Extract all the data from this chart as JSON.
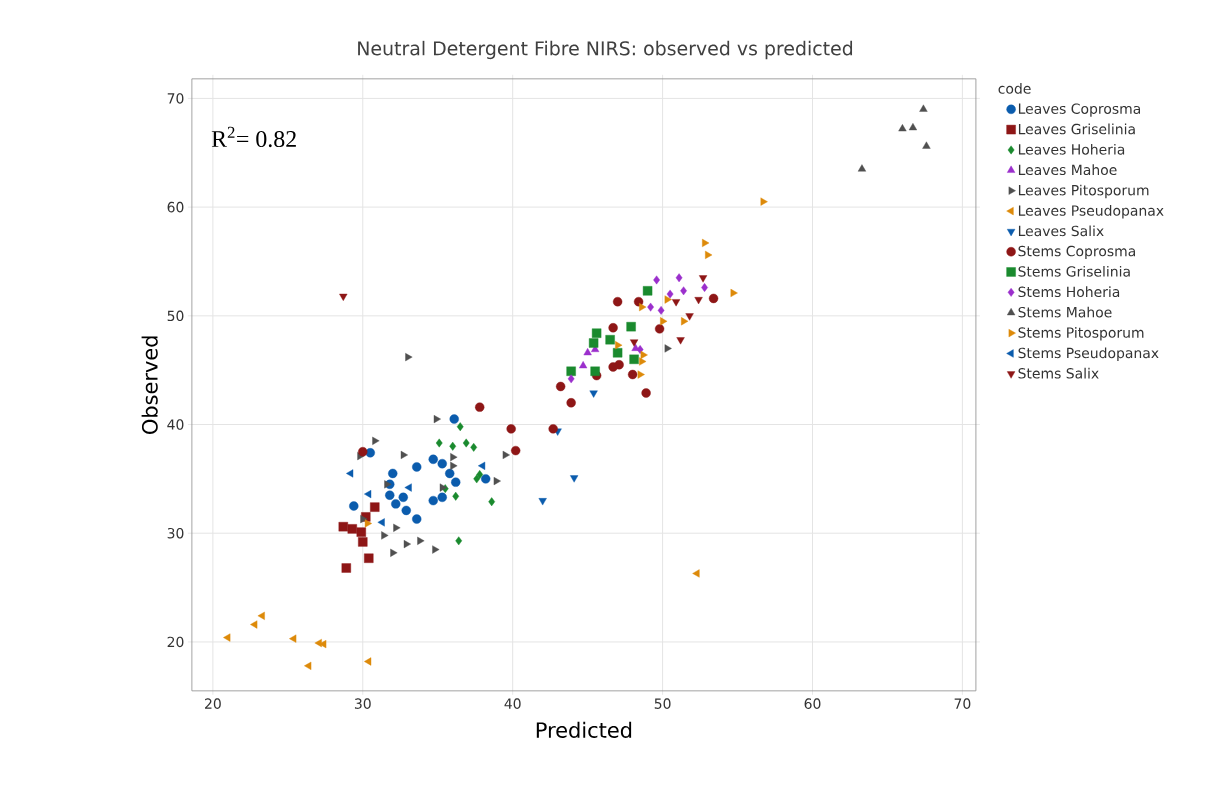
{
  "chart_data": {
    "type": "scatter",
    "title": "Neutral Detergent Fibre NIRS: observed vs predicted",
    "xlabel": "Predicted",
    "ylabel": "Observed",
    "legend_title": "code",
    "legend": "right",
    "grid": true,
    "annotations": [
      "R$^{2}$= 0.82"
    ],
    "xlim": [
      18.6,
      70.9
    ],
    "ylim": [
      15.5,
      71.8
    ],
    "xticks": [
      20,
      30,
      40,
      50,
      60,
      70
    ],
    "yticks": [
      20,
      30,
      40,
      50,
      60,
      70
    ],
    "series": [
      {
        "name": "Leaves Coprosma",
        "color": "#0b5cad",
        "marker": "circle",
        "x": [
          36.1,
          30.5,
          33.6,
          34.7,
          35.3,
          32.0,
          31.8,
          36.2,
          35.8,
          38.2,
          29.4,
          31.8,
          32.2,
          32.9,
          33.6,
          34.7,
          35.3,
          32.7
        ],
        "values": [
          40.5,
          37.4,
          36.1,
          36.8,
          36.4,
          35.5,
          34.5,
          34.7,
          35.5,
          35.0,
          32.5,
          33.5,
          32.7,
          32.1,
          31.3,
          33.0,
          33.3,
          33.3
        ]
      },
      {
        "name": "Leaves Griselinia",
        "color": "#8e1616",
        "marker": "square",
        "x": [
          28.7,
          29.3,
          29.9,
          30.0,
          30.4,
          28.9,
          30.8,
          30.2
        ],
        "values": [
          30.6,
          30.4,
          30.1,
          29.2,
          27.7,
          26.8,
          32.4,
          31.5
        ]
      },
      {
        "name": "Leaves Hoheria",
        "color": "#1a8a2e",
        "marker": "diamond",
        "x": [
          36.5,
          36.9,
          37.4,
          35.1,
          36.0,
          37.6,
          37.8,
          38.6,
          36.4,
          36.2,
          35.5
        ],
        "values": [
          39.8,
          38.3,
          37.9,
          38.3,
          38.0,
          35.0,
          35.4,
          32.9,
          29.3,
          33.4,
          34.1
        ]
      },
      {
        "name": "Leaves Mahoe",
        "color": "#9b2fcc",
        "marker": "triangle",
        "x": [
          45.0,
          44.7,
          45.5,
          48.2
        ],
        "values": [
          46.6,
          45.4,
          46.9,
          47.0
        ]
      },
      {
        "name": "Leaves Pitosporum",
        "color": "#505050",
        "marker": "triangle-right",
        "x": [
          33.0,
          34.9,
          30.8,
          29.8,
          32.7,
          39.5,
          36.0,
          36.0,
          38.9,
          31.6,
          35.3,
          30.0,
          32.2,
          31.4,
          32.9,
          33.8,
          34.8,
          32.0,
          50.3
        ],
        "values": [
          46.2,
          40.5,
          38.5,
          37.1,
          37.2,
          37.2,
          37.0,
          36.2,
          34.8,
          34.5,
          34.2,
          31.3,
          30.5,
          29.8,
          29.0,
          29.3,
          28.5,
          28.2,
          47.0
        ]
      },
      {
        "name": "Leaves Pseudopanax",
        "color": "#dd8a0a",
        "marker": "triangle-left",
        "x": [
          21.0,
          22.8,
          23.3,
          25.4,
          27.1,
          27.4,
          26.4,
          30.4,
          52.3
        ],
        "values": [
          20.4,
          21.6,
          22.4,
          20.3,
          19.9,
          19.8,
          17.8,
          18.2,
          26.3
        ]
      },
      {
        "name": "Leaves Salix",
        "color": "#0b5cad",
        "marker": "triangle-down",
        "x": [
          45.4,
          44.1,
          42.0,
          43.0
        ],
        "values": [
          42.9,
          35.1,
          33.0,
          39.4
        ]
      },
      {
        "name": "Stems Coprosma",
        "color": "#8e1616",
        "marker": "circle",
        "x": [
          37.8,
          30.0,
          47.0,
          48.4,
          53.4,
          49.8,
          46.7,
          47.1,
          46.7,
          48.0,
          43.2,
          43.9,
          48.9,
          39.9,
          42.7,
          40.2,
          45.6
        ],
        "values": [
          41.6,
          37.5,
          51.3,
          51.3,
          51.6,
          48.8,
          48.9,
          45.5,
          45.3,
          44.6,
          43.5,
          42.0,
          42.9,
          39.6,
          39.6,
          37.6,
          44.5
        ]
      },
      {
        "name": "Stems Griselinia",
        "color": "#1a8a2e",
        "marker": "square",
        "x": [
          49.0,
          47.9,
          45.6,
          45.4,
          46.5,
          47.0,
          43.9,
          45.5,
          48.1
        ],
        "values": [
          52.3,
          49.0,
          48.4,
          47.5,
          47.8,
          46.6,
          44.9,
          44.9,
          46.0
        ]
      },
      {
        "name": "Stems Hoheria",
        "color": "#9b2fcc",
        "marker": "diamond",
        "x": [
          49.6,
          51.1,
          51.4,
          52.8,
          49.2,
          49.9,
          50.5,
          48.5,
          43.9
        ],
        "values": [
          53.3,
          53.5,
          52.3,
          52.6,
          50.8,
          50.5,
          52.0,
          46.9,
          44.2
        ]
      },
      {
        "name": "Stems Mahoe",
        "color": "#505050",
        "marker": "triangle",
        "x": [
          67.4,
          66.0,
          66.7,
          67.6,
          63.3
        ],
        "values": [
          69.0,
          67.2,
          67.3,
          65.6,
          63.5
        ]
      },
      {
        "name": "Stems Pitosporum",
        "color": "#dd8a0a",
        "marker": "triangle-right",
        "x": [
          56.7,
          52.8,
          53.0,
          54.7,
          48.6,
          50.0,
          51.4,
          48.7,
          48.5,
          47.0,
          50.3,
          48.6,
          30.3
        ],
        "values": [
          60.5,
          56.7,
          55.6,
          52.1,
          50.8,
          49.5,
          49.5,
          46.4,
          44.6,
          47.3,
          51.5,
          45.8,
          30.9
        ]
      },
      {
        "name": "Stems Pseudopanax",
        "color": "#0b5cad",
        "marker": "triangle-left",
        "x": [
          29.2,
          30.4,
          33.1,
          31.3,
          38.0
        ],
        "values": [
          35.5,
          33.6,
          34.2,
          31.0,
          36.2
        ]
      },
      {
        "name": "Stems Salix",
        "color": "#8e1616",
        "marker": "triangle-down",
        "x": [
          28.7,
          52.7,
          52.4,
          51.8,
          51.2,
          50.9,
          48.1
        ],
        "values": [
          51.8,
          53.5,
          51.5,
          50.0,
          47.8,
          51.3,
          47.6
        ]
      }
    ]
  }
}
